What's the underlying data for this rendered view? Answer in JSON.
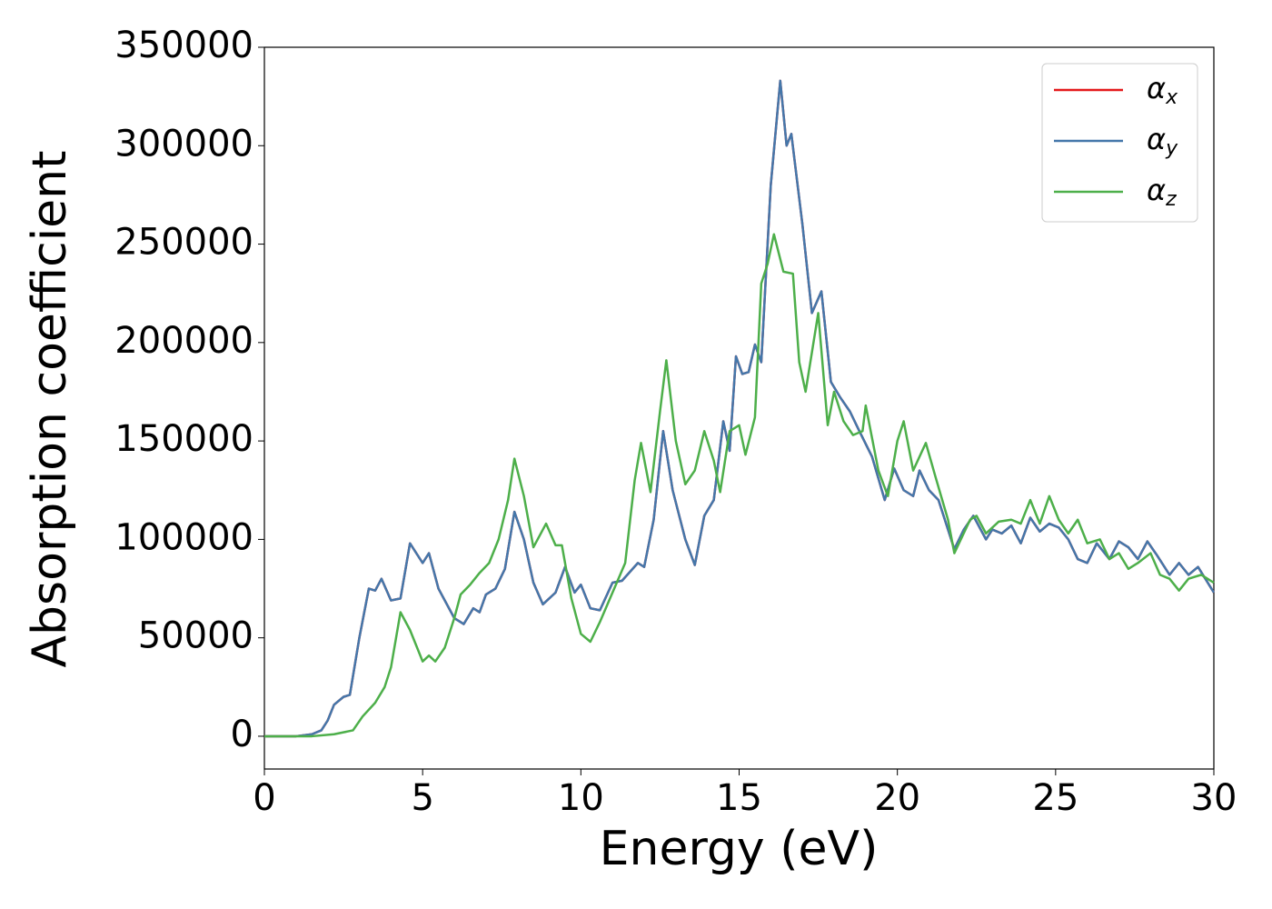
{
  "chart_data": {
    "type": "line",
    "xlabel": "Energy (eV)",
    "ylabel": "Absorption coefficient",
    "xlim": [
      0,
      30
    ],
    "ylim": [
      -16650,
      350000
    ],
    "xticks": [
      0,
      5,
      10,
      15,
      20,
      25,
      30
    ],
    "yticks": [
      0,
      50000,
      100000,
      150000,
      200000,
      250000,
      300000,
      350000
    ],
    "legend": "upper right",
    "series": [
      {
        "name": "αx",
        "color": "#e41a1c",
        "x": [
          0,
          1,
          1.5,
          1.8,
          2.0,
          2.2,
          2.5,
          2.7,
          3.0,
          3.3,
          3.5,
          3.7,
          4.0,
          4.3,
          4.6,
          5.0,
          5.2,
          5.5,
          6.0,
          6.3,
          6.6,
          6.8,
          7.0,
          7.3,
          7.6,
          7.9,
          8.2,
          8.5,
          8.8,
          9.2,
          9.5,
          9.8,
          10.0,
          10.3,
          10.6,
          11.0,
          11.3,
          11.8,
          12.0,
          12.3,
          12.6,
          12.9,
          13.3,
          13.6,
          13.9,
          14.2,
          14.5,
          14.7,
          14.9,
          15.1,
          15.3,
          15.5,
          15.7,
          16.0,
          16.3,
          16.5,
          16.65,
          17.0,
          17.3,
          17.6,
          17.9,
          18.2,
          18.5,
          18.8,
          19.2,
          19.6,
          19.9,
          20.2,
          20.5,
          20.7,
          21.0,
          21.3,
          21.5,
          21.8,
          22.1,
          22.4,
          22.8,
          23.0,
          23.3,
          23.6,
          23.9,
          24.2,
          24.5,
          24.8,
          25.1,
          25.4,
          25.7,
          26.0,
          26.3,
          26.7,
          27.0,
          27.3,
          27.6,
          27.9,
          28.2,
          28.6,
          28.9,
          29.2,
          29.5,
          30.0
        ],
        "values": [
          0,
          0,
          1000,
          3000,
          8000,
          16000,
          20000,
          21000,
          50000,
          75000,
          74000,
          80000,
          69000,
          70000,
          98000,
          88000,
          93000,
          75000,
          60000,
          57000,
          65000,
          63000,
          72000,
          75000,
          85000,
          114000,
          100000,
          78000,
          67000,
          73000,
          86000,
          73000,
          77000,
          65000,
          64000,
          78000,
          79000,
          88000,
          86000,
          110000,
          155000,
          125000,
          100000,
          87000,
          112000,
          120000,
          160000,
          145000,
          193000,
          184000,
          185000,
          199000,
          190000,
          280000,
          333000,
          300000,
          306000,
          260000,
          215000,
          226000,
          180000,
          172000,
          165000,
          155000,
          142000,
          120000,
          136000,
          125000,
          122000,
          135000,
          125000,
          120000,
          110000,
          95000,
          105000,
          112000,
          100000,
          105000,
          103000,
          107000,
          98000,
          111000,
          104000,
          108000,
          106000,
          100000,
          90000,
          88000,
          98000,
          90000,
          99000,
          96000,
          90000,
          99000,
          92000,
          82000,
          88000,
          82000,
          86000,
          73000
        ]
      },
      {
        "name": "αy",
        "color": "#4477aa",
        "x": [
          0,
          1,
          1.5,
          1.8,
          2.0,
          2.2,
          2.5,
          2.7,
          3.0,
          3.3,
          3.5,
          3.7,
          4.0,
          4.3,
          4.6,
          5.0,
          5.2,
          5.5,
          6.0,
          6.3,
          6.6,
          6.8,
          7.0,
          7.3,
          7.6,
          7.9,
          8.2,
          8.5,
          8.8,
          9.2,
          9.5,
          9.8,
          10.0,
          10.3,
          10.6,
          11.0,
          11.3,
          11.8,
          12.0,
          12.3,
          12.6,
          12.9,
          13.3,
          13.6,
          13.9,
          14.2,
          14.5,
          14.7,
          14.9,
          15.1,
          15.3,
          15.5,
          15.7,
          16.0,
          16.3,
          16.5,
          16.65,
          17.0,
          17.3,
          17.6,
          17.9,
          18.2,
          18.5,
          18.8,
          19.2,
          19.6,
          19.9,
          20.2,
          20.5,
          20.7,
          21.0,
          21.3,
          21.5,
          21.8,
          22.1,
          22.4,
          22.8,
          23.0,
          23.3,
          23.6,
          23.9,
          24.2,
          24.5,
          24.8,
          25.1,
          25.4,
          25.7,
          26.0,
          26.3,
          26.7,
          27.0,
          27.3,
          27.6,
          27.9,
          28.2,
          28.6,
          28.9,
          29.2,
          29.5,
          30.0
        ],
        "values": [
          0,
          0,
          1000,
          3000,
          8000,
          16000,
          20000,
          21000,
          50000,
          75000,
          74000,
          80000,
          69000,
          70000,
          98000,
          88000,
          93000,
          75000,
          60000,
          57000,
          65000,
          63000,
          72000,
          75000,
          85000,
          114000,
          100000,
          78000,
          67000,
          73000,
          86000,
          73000,
          77000,
          65000,
          64000,
          78000,
          79000,
          88000,
          86000,
          110000,
          155000,
          125000,
          100000,
          87000,
          112000,
          120000,
          160000,
          145000,
          193000,
          184000,
          185000,
          199000,
          190000,
          280000,
          333000,
          300000,
          306000,
          260000,
          215000,
          226000,
          180000,
          172000,
          165000,
          155000,
          142000,
          120000,
          136000,
          125000,
          122000,
          135000,
          125000,
          120000,
          110000,
          95000,
          105000,
          112000,
          100000,
          105000,
          103000,
          107000,
          98000,
          111000,
          104000,
          108000,
          106000,
          100000,
          90000,
          88000,
          98000,
          90000,
          99000,
          96000,
          90000,
          99000,
          92000,
          82000,
          88000,
          82000,
          86000,
          73000
        ]
      },
      {
        "name": "αz",
        "color": "#4daf4a",
        "x": [
          0,
          1.5,
          2.2,
          2.8,
          3.1,
          3.5,
          3.8,
          4.0,
          4.3,
          4.6,
          5.0,
          5.2,
          5.4,
          5.7,
          6.0,
          6.2,
          6.5,
          6.8,
          7.1,
          7.4,
          7.7,
          7.9,
          8.2,
          8.5,
          8.9,
          9.2,
          9.4,
          9.7,
          10.0,
          10.3,
          10.6,
          11.0,
          11.4,
          11.7,
          11.9,
          12.2,
          12.5,
          12.7,
          13.0,
          13.3,
          13.6,
          13.9,
          14.2,
          14.4,
          14.7,
          15.0,
          15.2,
          15.5,
          15.7,
          15.9,
          16.1,
          16.4,
          16.7,
          16.9,
          17.1,
          17.5,
          17.8,
          18.0,
          18.3,
          18.6,
          18.9,
          19.0,
          19.4,
          19.7,
          20.0,
          20.2,
          20.5,
          20.9,
          21.2,
          21.6,
          21.8,
          22.3,
          22.5,
          22.8,
          23.2,
          23.6,
          23.9,
          24.2,
          24.5,
          24.8,
          25.1,
          25.4,
          25.7,
          26.0,
          26.4,
          26.7,
          27.0,
          27.3,
          27.6,
          28.0,
          28.3,
          28.6,
          28.9,
          29.2,
          29.6,
          30.0
        ],
        "values": [
          0,
          0,
          1000,
          3000,
          10000,
          17000,
          25000,
          35000,
          63000,
          54000,
          38000,
          41000,
          38000,
          45000,
          60000,
          72000,
          77000,
          83000,
          88000,
          100000,
          120000,
          141000,
          122000,
          96000,
          108000,
          97000,
          97000,
          70000,
          52000,
          48000,
          58000,
          73000,
          88000,
          130000,
          149000,
          124000,
          165000,
          191000,
          150000,
          128000,
          135000,
          155000,
          140000,
          124000,
          155000,
          158000,
          143000,
          162000,
          230000,
          240000,
          255000,
          236000,
          235000,
          190000,
          175000,
          215000,
          158000,
          175000,
          160000,
          153000,
          155000,
          168000,
          135000,
          122000,
          150000,
          160000,
          135000,
          149000,
          132000,
          110000,
          93000,
          110000,
          112000,
          103000,
          109000,
          110000,
          108000,
          120000,
          108000,
          122000,
          110000,
          103000,
          110000,
          98000,
          100000,
          90000,
          93000,
          85000,
          88000,
          93000,
          82000,
          80000,
          74000,
          80000,
          82000,
          78000
        ]
      }
    ]
  }
}
